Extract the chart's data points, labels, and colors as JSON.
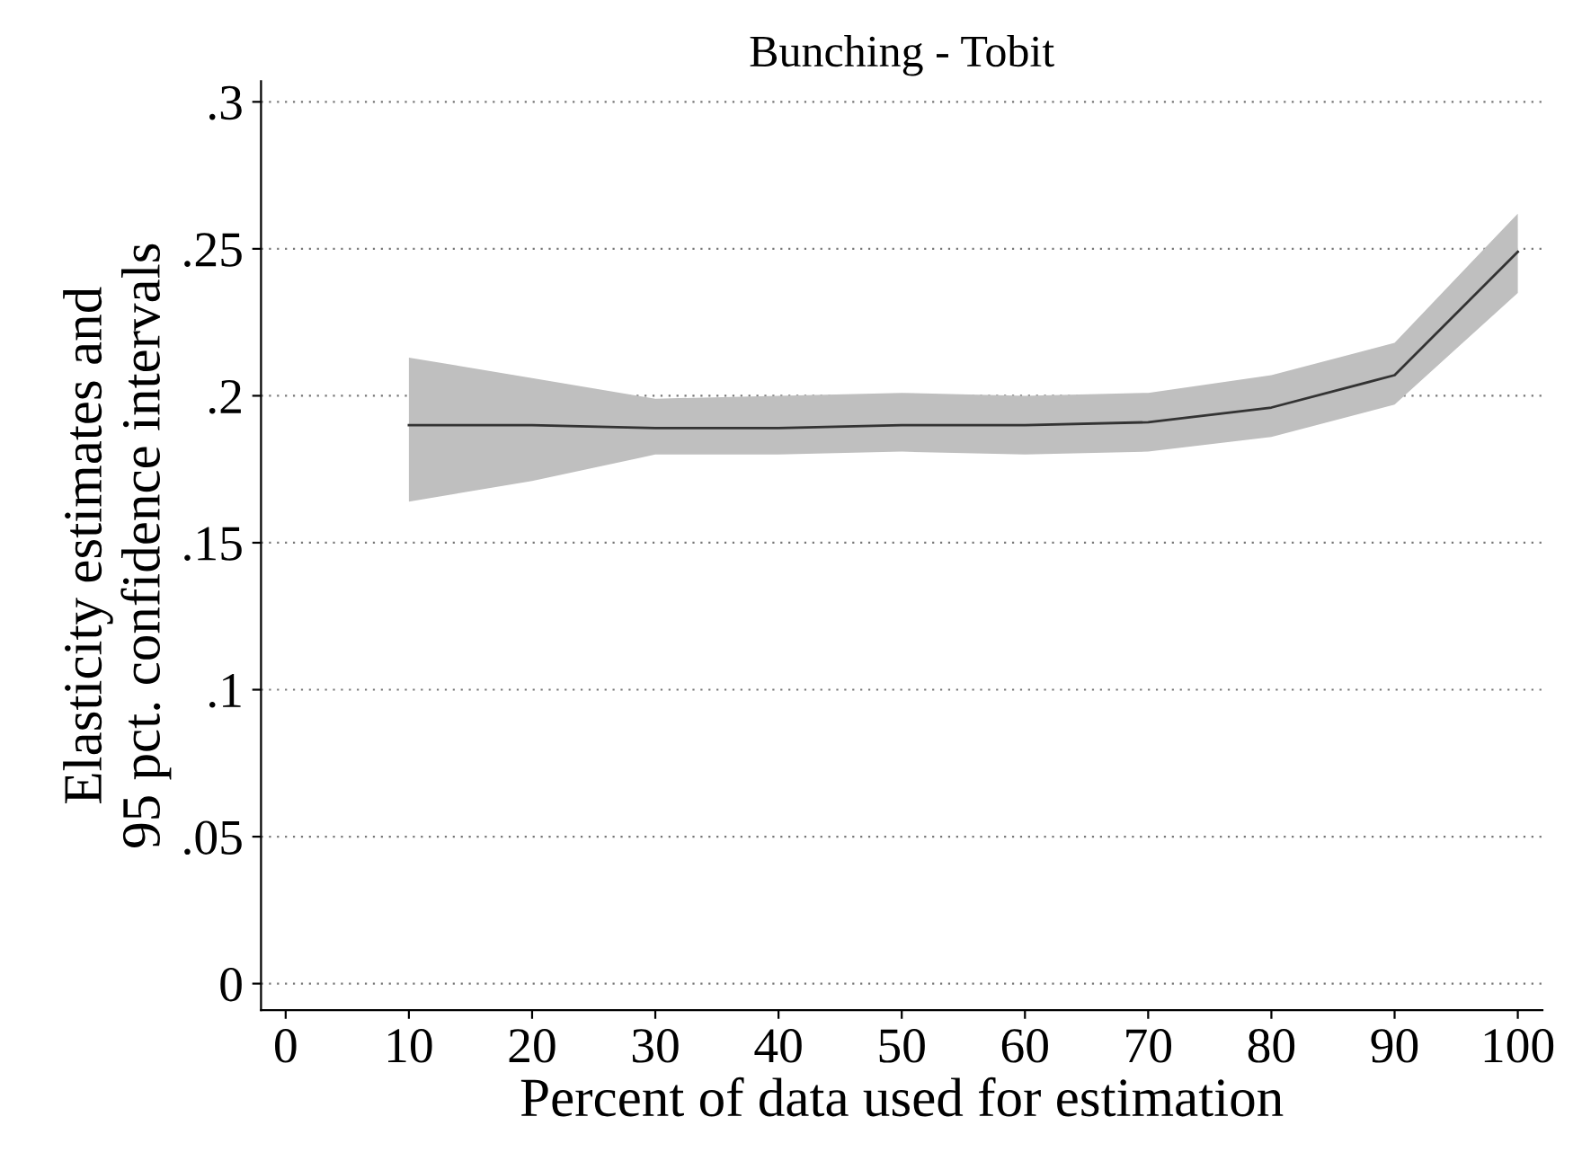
{
  "chart_data": {
    "type": "line",
    "title": "Bunching - Tobit",
    "xlabel": "Percent of data used for estimation",
    "ylabel": "Elasticity estimates and\n95 pct. confidence intervals",
    "x": [
      10,
      20,
      30,
      40,
      50,
      60,
      70,
      80,
      90,
      100
    ],
    "series": [
      {
        "color": "#333333",
        "values": [
          0.19,
          0.19,
          0.189,
          0.189,
          0.19,
          0.19,
          0.191,
          0.196,
          0.207,
          0.249
        ],
        "lower": [
          0.164,
          0.171,
          0.18,
          0.18,
          0.181,
          0.18,
          0.181,
          0.186,
          0.197,
          0.235
        ],
        "upper": [
          0.213,
          0.206,
          0.199,
          0.2,
          0.201,
          0.2,
          0.201,
          0.207,
          0.218,
          0.262
        ]
      }
    ],
    "xlim": [
      -2,
      102
    ],
    "ylim": [
      -0.009,
      0.307
    ],
    "xticks": [
      0,
      10,
      20,
      30,
      40,
      50,
      60,
      70,
      80,
      90,
      100
    ],
    "yticks": [
      {
        "value": 0,
        "label": "0"
      },
      {
        "value": 0.05,
        "label": ".05"
      },
      {
        "value": 0.1,
        "label": ".1"
      },
      {
        "value": 0.15,
        "label": ".15"
      },
      {
        "value": 0.2,
        "label": ".2"
      },
      {
        "value": 0.25,
        "label": ".25"
      },
      {
        "value": 0.3,
        "label": ".3"
      }
    ],
    "grid": "y",
    "legend": false,
    "marker": "none",
    "line_style": "solid"
  }
}
